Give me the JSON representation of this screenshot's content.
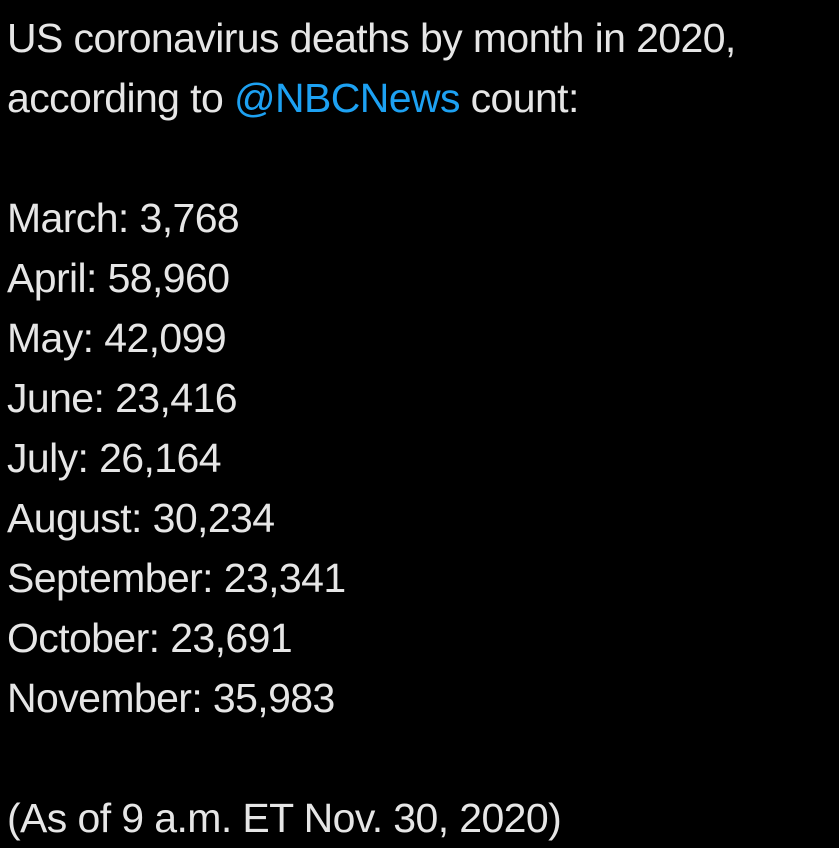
{
  "tweet": {
    "intro_line1": "US coronavirus deaths by month in 2020,",
    "intro_prefix": "according to ",
    "mention": "@NBCNews",
    "intro_suffix": " count:",
    "months": [
      {
        "text": "March: 3,768"
      },
      {
        "text": "April: 58,960"
      },
      {
        "text": "May: 42,099"
      },
      {
        "text": "June: 23,416"
      },
      {
        "text": "July: 26,164"
      },
      {
        "text": "August: 30,234"
      },
      {
        "text": "September: 23,341"
      },
      {
        "text": "October: 23,691"
      },
      {
        "text": "November: 35,983"
      }
    ],
    "footnote": "(As of 9 a.m. ET Nov. 30, 2020)"
  },
  "colors": {
    "text": "#e6e6e6",
    "link": "#1da1f2",
    "background": "#000000"
  }
}
